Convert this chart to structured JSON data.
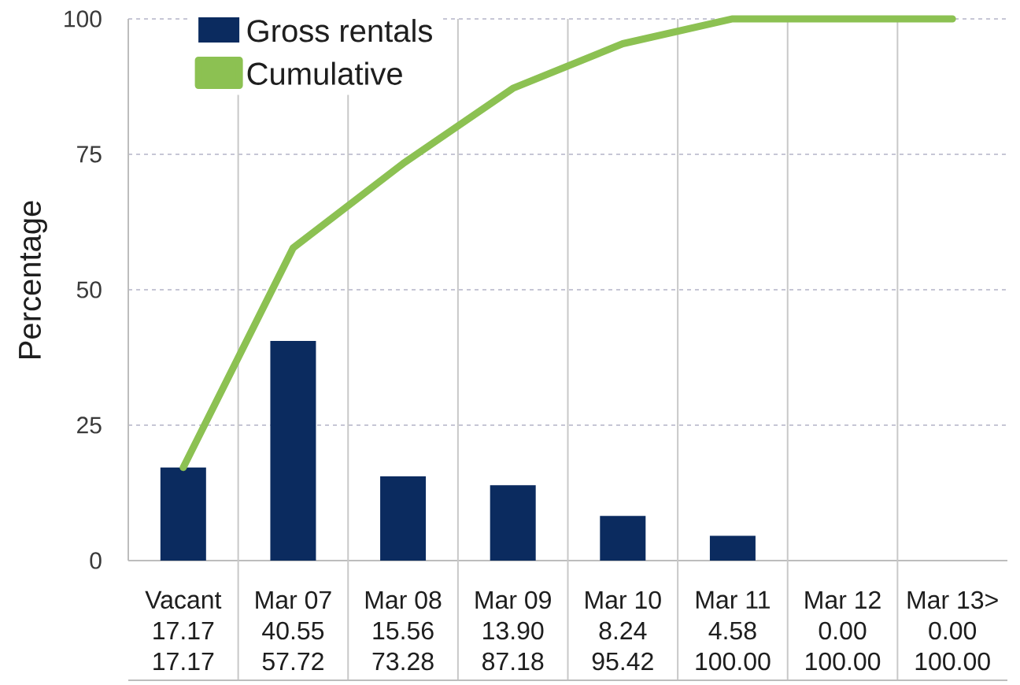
{
  "chart_data": {
    "type": "bar",
    "ylabel": "Percentage",
    "categories": [
      "Vacant",
      "Mar 07",
      "Mar 08",
      "Mar 09",
      "Mar 10",
      "Mar 11",
      "Mar 12",
      "Mar 13>"
    ],
    "series": [
      {
        "name": "Gross rentals",
        "color": "#0b2b5f",
        "values": [
          17.17,
          40.55,
          15.56,
          13.9,
          8.24,
          4.58,
          0,
          0
        ],
        "value_labels": [
          "17.17",
          "40.55",
          "15.56",
          "13.90",
          "8.24",
          "4.58",
          "0.00",
          "0.00"
        ]
      },
      {
        "name": "Cumulative",
        "type": "line",
        "color": "#8cc152",
        "values": [
          17.17,
          57.72,
          73.28,
          87.18,
          95.42,
          100,
          100,
          100
        ],
        "value_labels": [
          "17.17",
          "57.72",
          "73.28",
          "87.18",
          "95.42",
          "100.00",
          "100.00",
          "100.00"
        ]
      }
    ],
    "ylim": [
      0,
      100
    ],
    "yticks": [
      0,
      25,
      50,
      75,
      100
    ],
    "grid": true,
    "legend": "top left"
  }
}
